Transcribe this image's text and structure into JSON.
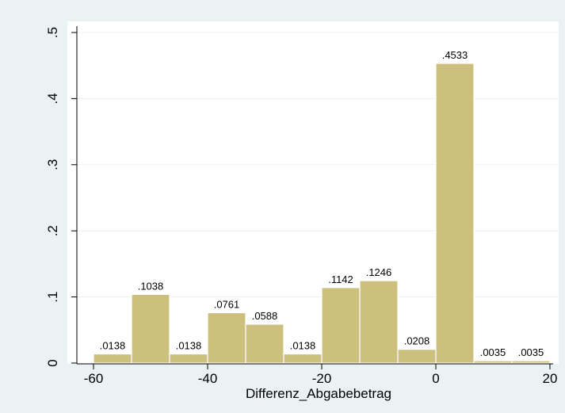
{
  "chart_data": {
    "type": "bar",
    "subtype": "histogram",
    "xlabel": "Differenz_Abgabebetrag",
    "ylabel": "",
    "xlim": [
      -60,
      20
    ],
    "ylim": [
      0,
      0.5
    ],
    "grid": true,
    "bin_edges": [
      -60,
      -53.333,
      -46.667,
      -40,
      -33.333,
      -26.667,
      -20,
      -13.333,
      -6.667,
      0,
      6.667,
      13.333,
      20
    ],
    "values": [
      0.0138,
      0.1038,
      0.0138,
      0.0761,
      0.0588,
      0.0138,
      0.1142,
      0.1246,
      0.0208,
      0.4533,
      0.0035,
      0.0035
    ],
    "data_labels": [
      ".0138",
      ".1038",
      ".0138",
      ".0761",
      ".0588",
      ".0138",
      ".1142",
      ".1246",
      ".0208",
      ".4533",
      ".0035",
      ".0035"
    ],
    "x_ticks": [
      -60,
      -40,
      -20,
      0,
      20
    ],
    "x_tick_labels": [
      "-60",
      "-40",
      "-20",
      "0",
      "20"
    ],
    "y_ticks": [
      0,
      0.1,
      0.2,
      0.3,
      0.4,
      0.5
    ],
    "y_tick_labels": [
      "0",
      ".1",
      ".2",
      ".3",
      ".4",
      ".5"
    ],
    "colors": {
      "background": "#eaf2f3",
      "plot_background": "#ffffff",
      "bar_fill": "#cdc07e",
      "bar_stroke": "#ffffff"
    }
  }
}
